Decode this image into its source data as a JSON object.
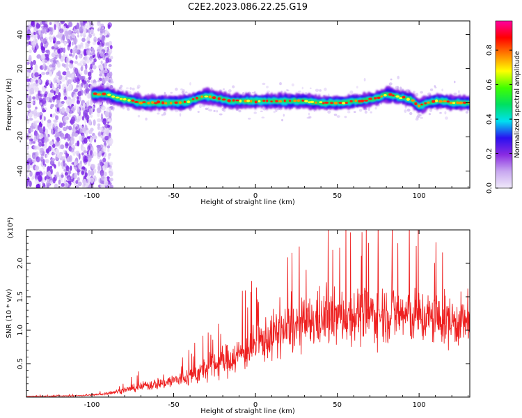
{
  "title": "C2E2.2023.086.22.25.G19",
  "colorbar": {
    "label": "Normalized spectral amplitude",
    "ticks": [
      0.0,
      0.2,
      0.4,
      0.6,
      0.8
    ],
    "tick_labels": [
      "0.0",
      "0.2",
      "0.4",
      "0.6",
      "0.8"
    ],
    "range": [
      0,
      0.97
    ],
    "stops": [
      "#f0eafa",
      "#c8a8f0",
      "#8a2be2",
      "#2a10f0",
      "#00e0f0",
      "#00e060",
      "#40ff00",
      "#ffff00",
      "#ff8000",
      "#ff0000",
      "#ff00a0"
    ]
  },
  "chart_data": [
    {
      "type": "heatmap",
      "xlabel": "Height of straight line (km)",
      "ylabel": "Frequency (Hz)",
      "xlim": [
        -140,
        131
      ],
      "ylim": [
        -50,
        48
      ],
      "xticks": [
        -100,
        -50,
        0,
        50,
        100
      ],
      "xtick_labels": [
        "-100",
        "-50",
        "0",
        "50",
        "100"
      ],
      "yticks": [
        -40,
        -20,
        0,
        20,
        40
      ],
      "ytick_labels": [
        "-40",
        "-20",
        "0",
        "20",
        "40"
      ],
      "ridge": {
        "x": [
          -100,
          -95,
          -90,
          -85,
          -80,
          -75,
          -70,
          -65,
          -60,
          -55,
          -50,
          -45,
          -40,
          -35,
          -30,
          -25,
          -20,
          -15,
          -10,
          -5,
          0,
          10,
          20,
          30,
          40,
          50,
          55,
          60,
          65,
          70,
          75,
          80,
          85,
          90,
          95,
          100,
          105,
          110,
          115,
          120,
          125,
          131
        ],
        "y": [
          5,
          5,
          5,
          3,
          2,
          1,
          0,
          0,
          0,
          0,
          0,
          0,
          1,
          3,
          4,
          3,
          2,
          1,
          1,
          1,
          1,
          1,
          1,
          1,
          0,
          0,
          0,
          1,
          1,
          2,
          3,
          5,
          4,
          3,
          2,
          -2,
          0,
          1,
          1,
          0,
          0,
          0
        ]
      },
      "noise_region_x": [
        -140,
        -88
      ]
    },
    {
      "type": "line",
      "xlabel": "Height of straight line (km)",
      "ylabel": "SNR (10 * v/v)",
      "y_multiplier_label": "(x10⁴)",
      "xlim": [
        -140,
        131
      ],
      "ylim": [
        0,
        2.5
      ],
      "xticks": [
        -100,
        -50,
        0,
        50,
        100
      ],
      "xtick_labels": [
        "-100",
        "-50",
        "0",
        "50",
        "100"
      ],
      "yticks": [
        0.5,
        1.0,
        1.5,
        2.0
      ],
      "ytick_labels": [
        "0.5",
        "1.0",
        "1.5",
        "2.0"
      ],
      "color": "#ee2020",
      "envelope": {
        "x": [
          -140,
          -110,
          -95,
          -85,
          -75,
          -65,
          -55,
          -45,
          -35,
          -25,
          -15,
          -5,
          5,
          15,
          25,
          35,
          45,
          55,
          65,
          75,
          85,
          95,
          105,
          115,
          125,
          131
        ],
        "mean": [
          0.01,
          0.02,
          0.04,
          0.08,
          0.13,
          0.18,
          0.22,
          0.27,
          0.36,
          0.48,
          0.58,
          0.7,
          0.85,
          0.97,
          1.05,
          1.12,
          1.18,
          1.22,
          1.24,
          1.25,
          1.25,
          1.22,
          1.18,
          1.15,
          1.12,
          1.1
        ],
        "spread": [
          0.005,
          0.01,
          0.02,
          0.04,
          0.07,
          0.1,
          0.13,
          0.16,
          0.22,
          0.28,
          0.32,
          0.36,
          0.42,
          0.46,
          0.48,
          0.5,
          0.52,
          0.54,
          0.55,
          0.56,
          0.56,
          0.55,
          0.52,
          0.5,
          0.48,
          0.46
        ]
      },
      "samples": 1350
    }
  ]
}
